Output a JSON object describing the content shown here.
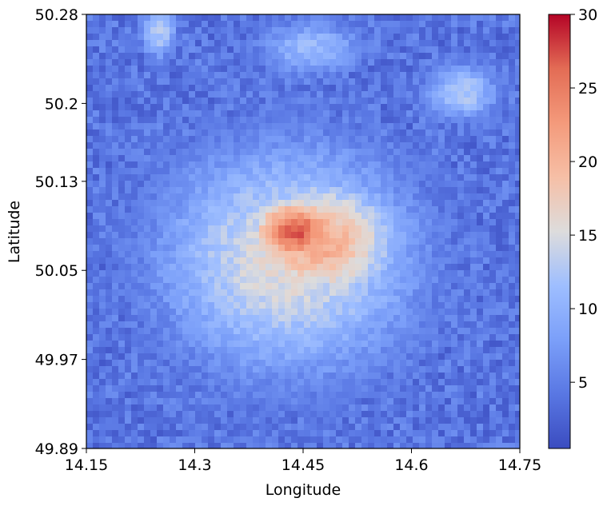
{
  "chart_data": {
    "type": "heatmap",
    "title": "",
    "xlabel": "Longitude",
    "ylabel": "Latitude",
    "xlim": [
      14.15,
      14.75
    ],
    "ylim": [
      49.89,
      50.28
    ],
    "x_ticks": [
      "14.15",
      "14.3",
      "14.45",
      "14.6",
      "14.75"
    ],
    "y_ticks": [
      "50.28",
      "50.2",
      "50.13",
      "50.05",
      "49.97",
      "49.89"
    ],
    "colorbar": {
      "colormap": "coolwarm",
      "range": [
        0.5,
        30
      ],
      "ticks": [
        "5",
        "10",
        "15",
        "20",
        "25",
        "30"
      ],
      "tick_values": [
        5,
        10,
        15,
        20,
        25,
        30
      ]
    },
    "grid": false,
    "hotspots": [
      {
        "lon": 14.44,
        "lat": 50.085,
        "value": 27,
        "spread_lon": 0.05,
        "spread_lat": 0.025
      },
      {
        "lon": 14.47,
        "lat": 50.075,
        "value": 21,
        "spread_lon": 0.09,
        "spread_lat": 0.045
      },
      {
        "lon": 14.43,
        "lat": 50.06,
        "value": 16,
        "spread_lon": 0.14,
        "spread_lat": 0.08
      },
      {
        "lon": 14.25,
        "lat": 50.265,
        "value": 13,
        "spread_lon": 0.02,
        "spread_lat": 0.02
      },
      {
        "lon": 14.67,
        "lat": 50.21,
        "value": 13,
        "spread_lon": 0.04,
        "spread_lat": 0.02
      },
      {
        "lon": 14.46,
        "lat": 50.25,
        "value": 11,
        "spread_lon": 0.06,
        "spread_lat": 0.02
      }
    ],
    "background_value": 4
  }
}
